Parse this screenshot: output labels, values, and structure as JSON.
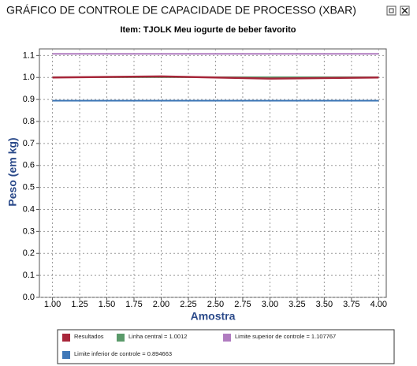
{
  "window_title": "GRÁFICO DE CONTROLE DE CAPACIDADE DE PROCESSO (XBAR)",
  "chart_data": {
    "type": "line",
    "title": "Item: TJOLK Meu iogurte de beber favorito",
    "x_label": "Amostra",
    "y_label": "Peso (em kg)",
    "x": [
      1,
      2,
      3,
      4
    ],
    "series": [
      {
        "name": "Resultados",
        "color": "#a8263a",
        "values": [
          1.0,
          1.005,
          0.995,
          1.0
        ]
      },
      {
        "name": "Linha central = 1.0012",
        "color": "#5a9a6a",
        "values": [
          1.0012,
          1.0012,
          1.0012,
          1.0012
        ]
      },
      {
        "name": "Limite superior de controle = 1.107767",
        "color": "#b07cc0",
        "values": [
          1.107767,
          1.107767,
          1.107767,
          1.107767
        ]
      },
      {
        "name": "Limite inferior de controle = 0.894663",
        "color": "#3f78b8",
        "values": [
          0.894663,
          0.894663,
          0.894663,
          0.894663
        ]
      }
    ],
    "xlim": [
      0.88,
      4.07
    ],
    "xticks": [
      {
        "value": 1,
        "label": "1.00"
      },
      1.25,
      {
        "value": 1.5,
        "label": "1.50"
      },
      1.75,
      {
        "value": 2,
        "label": "2.00"
      },
      2.25,
      {
        "value": 2.5,
        "label": "2.50"
      },
      2.75,
      {
        "value": 3,
        "label": "3.00"
      },
      3.25,
      {
        "value": 3.5,
        "label": "3.50"
      },
      3.75,
      {
        "value": 4,
        "label": "4.00"
      }
    ],
    "ylim": [
      0,
      1.13
    ],
    "yticks": [
      {
        "value": 0,
        "label": "0.0"
      },
      0.1,
      0.2,
      0.3,
      0.4,
      0.5,
      0.6,
      0.7,
      0.8,
      0.9,
      {
        "value": 1,
        "label": "1.0"
      },
      1.1
    ],
    "grid": true
  }
}
